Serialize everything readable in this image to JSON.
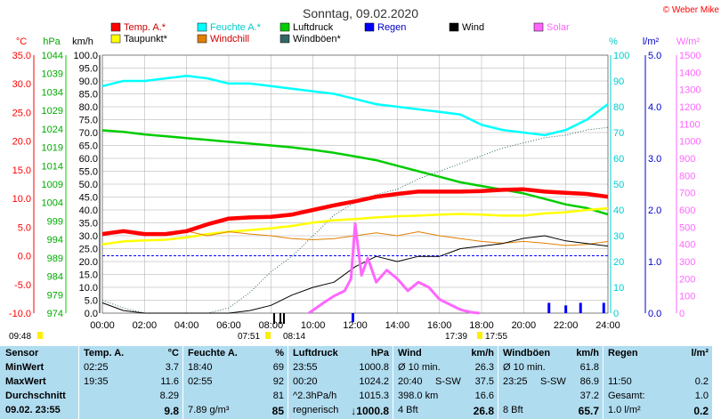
{
  "header": {
    "title": "Sonntag, 09.02.2020",
    "credit": "© Weber Mike"
  },
  "colors": {
    "temp": "#ff0000",
    "humidity": "#00ffff",
    "pressure": "#00cc00",
    "rain": "#0000ff",
    "wind": "#000000",
    "solar": "#ff66ff",
    "dewpoint": "#ffff00",
    "windchill": "#e08000",
    "gusts": "#336666",
    "panel": "#b0dcf0"
  },
  "legend": [
    {
      "label": "Temp. A.*",
      "color": "#ff0000"
    },
    {
      "label": "Feuchte A.*",
      "color": "#00ffff"
    },
    {
      "label": "Luftdruck",
      "color": "#00cc00"
    },
    {
      "label": "Regen",
      "color": "#0000ff"
    },
    {
      "label": "Wind",
      "color": "#000000"
    },
    {
      "label": "Solar",
      "color": "#ff66ff"
    },
    {
      "label": "Taupunkt*",
      "color": "#ffff00"
    },
    {
      "label": "Windchill",
      "color": "#e08000"
    },
    {
      "label": "Windböen*",
      "color": "#336666"
    }
  ],
  "axes": {
    "temp": {
      "unit": "°C",
      "ticks": [
        "35.0",
        "30.0",
        "25.0",
        "20.0",
        "15.0",
        "10.0",
        "5.0",
        "0.0",
        "-5.0",
        "-10.0"
      ]
    },
    "pressure": {
      "unit": "hPa",
      "ticks": [
        "1044",
        "1039",
        "1034",
        "1029",
        "1024",
        "1019",
        "1014",
        "1009",
        "1004",
        "999",
        "994",
        "989",
        "984",
        "979",
        "974"
      ]
    },
    "wind": {
      "unit": "km/h",
      "ticks": [
        "100.0",
        "95.0",
        "90.0",
        "85.0",
        "80.0",
        "75.0",
        "70.0",
        "65.0",
        "60.0",
        "55.0",
        "50.0",
        "45.0",
        "40.0",
        "35.0",
        "30.0",
        "25.0",
        "20.0",
        "15.0",
        "10.0",
        "5.0",
        "0.0"
      ]
    },
    "humidity": {
      "unit": "%",
      "ticks": [
        "100",
        "90",
        "80",
        "70",
        "60",
        "50",
        "40",
        "30",
        "20",
        "10",
        "0"
      ]
    },
    "rain": {
      "unit": "l/m²",
      "ticks": [
        "5.0",
        "4.0",
        "3.0",
        "2.0",
        "1.0",
        "0.0"
      ]
    },
    "solar": {
      "unit": "W/m²",
      "ticks": [
        "1500",
        "1400",
        "1300",
        "1200",
        "1100",
        "1000",
        "900",
        "800",
        "700",
        "600",
        "500",
        "400",
        "300",
        "200",
        "100",
        "0"
      ]
    },
    "time": {
      "ticks": [
        "00:00",
        "02:00",
        "04:00",
        "06:00",
        "08:00",
        "10:00",
        "12:00",
        "14:00",
        "16:00",
        "18:00",
        "20:00",
        "22:00",
        "24:00"
      ]
    }
  },
  "sun_marks": {
    "left_time": "09:48",
    "sunrise": "07:51",
    "sunrise2": "08:14",
    "sunset": "17:39",
    "sunset2": "17:55"
  },
  "chart_data": {
    "type": "line",
    "title": "Sonntag, 09.02.2020",
    "x_unit": "hour",
    "xlim": [
      0,
      24
    ],
    "series": [
      {
        "name": "Temp. A.*",
        "axis": "temp",
        "ylim": [
          -10,
          35
        ],
        "x": [
          0,
          1,
          2,
          3,
          4,
          5,
          6,
          7,
          8,
          9,
          10,
          11,
          12,
          13,
          14,
          15,
          16,
          17,
          18,
          19,
          20,
          21,
          22,
          23,
          24
        ],
        "values": [
          3.8,
          4.3,
          3.8,
          3.8,
          4.3,
          5.5,
          6.5,
          6.7,
          6.8,
          7.2,
          8.0,
          8.8,
          9.5,
          10.3,
          10.8,
          11.2,
          11.2,
          11.2,
          11.3,
          11.5,
          11.6,
          11.2,
          11.0,
          10.8,
          10.3
        ]
      },
      {
        "name": "Feuchte A.*",
        "axis": "humidity",
        "ylim": [
          0,
          100
        ],
        "x": [
          0,
          1,
          2,
          3,
          4,
          5,
          6,
          7,
          8,
          9,
          10,
          11,
          12,
          13,
          14,
          15,
          16,
          17,
          18,
          19,
          20,
          21,
          22,
          23,
          24
        ],
        "values": [
          88,
          90,
          90,
          91,
          92,
          91,
          89,
          89,
          88,
          87,
          86,
          85,
          83,
          81,
          80,
          79,
          78,
          77,
          73,
          71,
          70,
          69,
          71,
          75,
          81
        ]
      },
      {
        "name": "Luftdruck",
        "axis": "pressure",
        "ylim": [
          974,
          1044
        ],
        "x": [
          0,
          1,
          2,
          3,
          4,
          5,
          6,
          7,
          8,
          9,
          10,
          11,
          12,
          13,
          14,
          15,
          16,
          17,
          18,
          19,
          20,
          21,
          22,
          23,
          24
        ],
        "values": [
          1023.6,
          1023.2,
          1022.5,
          1022.0,
          1021.5,
          1021.0,
          1020.5,
          1020.0,
          1019.5,
          1019.0,
          1018.3,
          1017.5,
          1016.5,
          1015.5,
          1014.0,
          1012.5,
          1011.0,
          1009.5,
          1008.5,
          1007.5,
          1006.5,
          1005.0,
          1003.5,
          1002.5,
          1000.8
        ]
      },
      {
        "name": "Taupunkt*",
        "axis": "temp",
        "ylim": [
          -10,
          35
        ],
        "x": [
          0,
          1,
          2,
          3,
          4,
          5,
          6,
          7,
          8,
          9,
          10,
          11,
          12,
          13,
          14,
          15,
          16,
          17,
          18,
          19,
          20,
          21,
          22,
          23,
          24
        ],
        "values": [
          2.0,
          2.5,
          2.7,
          2.8,
          3.2,
          3.8,
          4.2,
          4.5,
          4.8,
          5.2,
          5.8,
          6.2,
          6.4,
          6.7,
          6.9,
          7.0,
          7.2,
          7.3,
          7.2,
          7.0,
          7.0,
          7.4,
          7.6,
          8.0,
          8.3
        ]
      },
      {
        "name": "Windchill",
        "axis": "temp",
        "ylim": [
          -10,
          35
        ],
        "x": [
          0,
          1,
          2,
          3,
          4,
          5,
          6,
          7,
          8,
          9,
          10,
          11,
          12,
          13,
          14,
          15,
          16,
          17,
          18,
          19,
          20,
          21,
          22,
          23,
          24
        ],
        "values": [
          3.8,
          4.3,
          3.8,
          3.8,
          4.3,
          3.5,
          4.2,
          3.8,
          3.5,
          3.0,
          2.8,
          3.0,
          3.5,
          4.0,
          3.5,
          4.2,
          3.5,
          3.0,
          2.5,
          2.2,
          2.5,
          2.2,
          1.8,
          2.0,
          2.5
        ]
      },
      {
        "name": "Wind",
        "axis": "wind",
        "ylim": [
          0,
          100
        ],
        "x": [
          0,
          1,
          2,
          3,
          4,
          5,
          6,
          7,
          8,
          9,
          10,
          11,
          12,
          13,
          14,
          15,
          16,
          17,
          18,
          19,
          20,
          21,
          22,
          23,
          24
        ],
        "values": [
          4,
          1,
          0,
          0,
          0,
          0,
          0,
          1,
          3,
          7,
          10,
          12,
          18,
          22,
          20,
          22,
          22,
          25,
          26,
          27,
          29,
          30,
          28,
          27,
          26
        ]
      },
      {
        "name": "Windböen*",
        "axis": "wind",
        "ylim": [
          0,
          100
        ],
        "x": [
          0,
          1,
          2,
          3,
          4,
          5,
          6,
          7,
          8,
          9,
          10,
          11,
          12,
          13,
          14,
          15,
          16,
          17,
          18,
          19,
          20,
          21,
          22,
          23,
          24
        ],
        "values": [
          5,
          2,
          0,
          0,
          0,
          0,
          2,
          8,
          16,
          22,
          30,
          38,
          43,
          46,
          48,
          52,
          55,
          58,
          61,
          64,
          66,
          68,
          69,
          71,
          72
        ]
      },
      {
        "name": "Solar",
        "axis": "solar",
        "ylim": [
          0,
          1500
        ],
        "x": [
          9.8,
          10.5,
          11.0,
          11.5,
          11.8,
          12.0,
          12.3,
          12.6,
          13.0,
          13.5,
          14.0,
          14.5,
          15.0,
          15.5,
          16.0,
          16.5,
          17.0,
          17.5,
          17.9
        ],
        "values": [
          0,
          60,
          100,
          130,
          200,
          520,
          220,
          320,
          180,
          250,
          200,
          130,
          180,
          150,
          80,
          50,
          20,
          5,
          0
        ]
      },
      {
        "name": "Regen",
        "axis": "rain",
        "ylim": [
          0,
          5
        ],
        "x": [
          21.2,
          22.0,
          22.7,
          23.8
        ],
        "values": [
          0.2,
          0.15,
          0.2,
          0.2
        ]
      }
    ]
  },
  "stats": {
    "headers": {
      "sensor": "Sensor",
      "temp": "Temp. A.",
      "temp_unit": "°C",
      "hum": "Feuchte A.",
      "hum_unit": "%",
      "press": "Luftdruck",
      "press_unit": "hPa",
      "wind": "Wind",
      "wind_unit": "km/h",
      "gust": "Windböen",
      "gust_unit": "km/h",
      "rain": "Regen",
      "rain_unit": "l/m²"
    },
    "rows": [
      {
        "label": "MinWert",
        "t_time": "02:25",
        "t_val": "3.7",
        "h_time": "18:40",
        "h_val": "69",
        "p_time": "23:55",
        "p_val": "1000.8",
        "w_a": "Ø 10 min.",
        "w_b": "",
        "w_val": "26.3",
        "g_a": "Ø 10 min.",
        "g_b": "",
        "g_val": "61.8",
        "r_time": "",
        "r_val": ""
      },
      {
        "label": "MaxWert",
        "t_time": "19:35",
        "t_val": "11.6",
        "h_time": "02:55",
        "h_val": "92",
        "p_time": "00:20",
        "p_val": "1024.2",
        "w_a": "20:40",
        "w_b": "S-SW",
        "w_val": "37.5",
        "g_a": "23:25",
        "g_b": "S-SW",
        "g_val": "86.9",
        "r_time": "11:50",
        "r_val": "0.2"
      },
      {
        "label": "Durchschnitt",
        "t_time": "",
        "t_val": "8.29",
        "h_time": "",
        "h_val": "81",
        "p_time": "^2.3hPa/h",
        "p_val": "1015.3",
        "w_a": "398.0 km",
        "w_b": "",
        "w_val": "16.6",
        "g_a": "",
        "g_b": "",
        "g_val": "37.2",
        "r_time": "Gesamt:",
        "r_val": "1.0"
      },
      {
        "label": "09.02. 23:55",
        "t_time": "",
        "t_val": "9.8",
        "h_time": "7.89 g/m³",
        "h_val": "85",
        "p_time": "regnerisch",
        "p_val": "↓1000.8",
        "w_a": "4 Bft",
        "w_b": "",
        "w_val": "26.8",
        "g_a": "8 Bft",
        "g_b": "",
        "g_val": "65.7",
        "r_time": "1.0 l/m²",
        "r_val": "0.2"
      }
    ]
  }
}
